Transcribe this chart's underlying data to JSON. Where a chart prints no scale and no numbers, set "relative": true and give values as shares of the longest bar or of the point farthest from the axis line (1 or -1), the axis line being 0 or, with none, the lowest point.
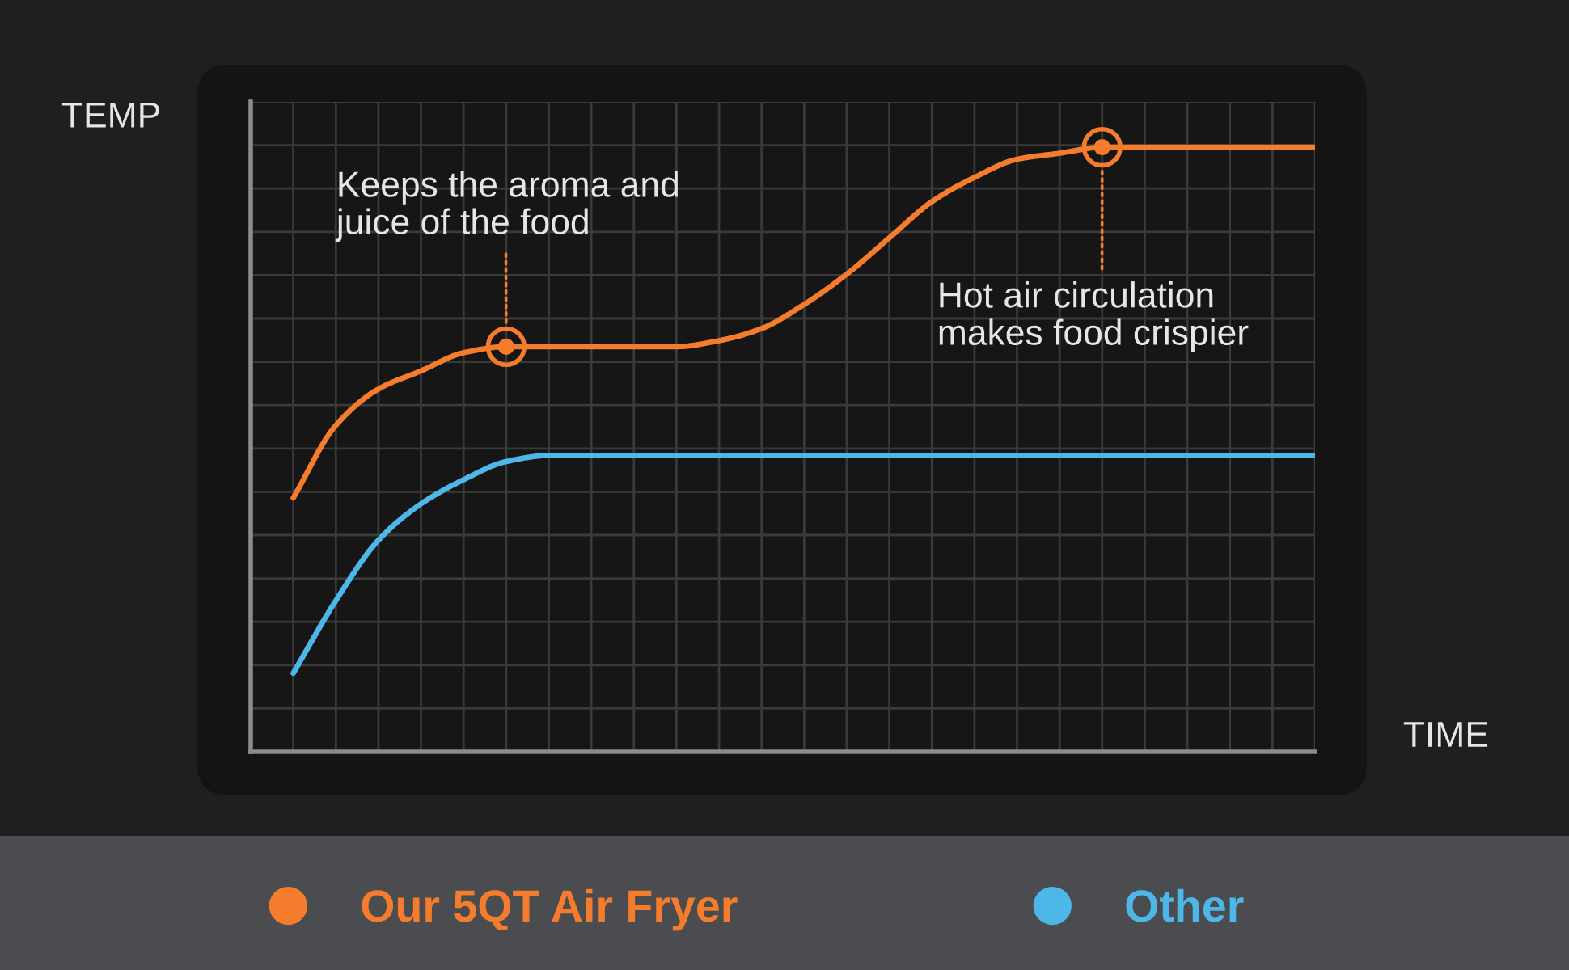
{
  "chart_data": {
    "type": "line",
    "relative": true,
    "xlabel": "TIME",
    "ylabel": "TEMP",
    "categories": [
      null,
      null,
      null,
      null,
      null,
      null,
      null,
      null,
      null,
      null,
      null,
      null,
      null,
      null,
      null,
      null,
      null,
      null,
      null,
      null,
      null,
      null,
      null,
      null,
      null
    ],
    "series": [
      {
        "name": "Our 5QT Air Fryer",
        "color": "#f47c2c",
        "values": [
          0.42,
          0.54,
          0.6,
          0.63,
          0.66,
          0.67,
          0.67,
          0.67,
          0.67,
          0.67,
          0.68,
          0.7,
          0.74,
          0.79,
          0.85,
          0.91,
          0.95,
          0.98,
          0.99,
          1,
          1,
          1,
          1,
          1,
          1
        ]
      },
      {
        "name": "Other",
        "color": "#4db8e8",
        "values": [
          0.13,
          0.25,
          0.35,
          0.41,
          0.45,
          0.48,
          0.49,
          0.49,
          0.49,
          0.49,
          0.49,
          0.49,
          0.49,
          0.49,
          0.49,
          0.49,
          0.49,
          0.49,
          0.49,
          0.49,
          0.49,
          0.49,
          0.49,
          0.49,
          0.49
        ]
      }
    ],
    "annotations": [
      "Keeps the aroma and\njuice of the food",
      "Hot air circulation\nmakes food crispier"
    ],
    "grid": true,
    "legend": "bottom"
  }
}
